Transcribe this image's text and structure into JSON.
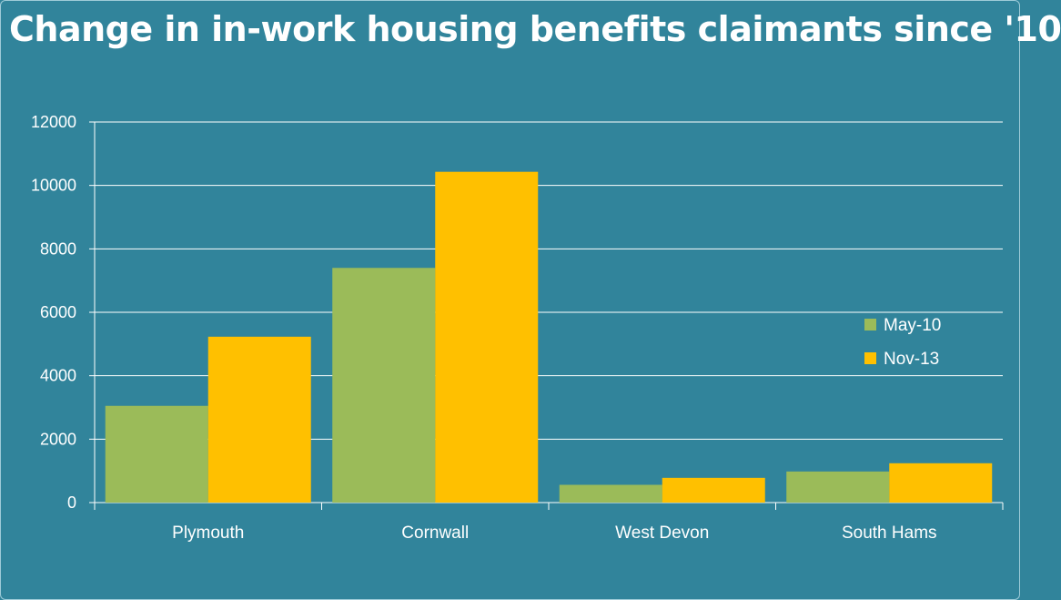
{
  "chart_data": {
    "type": "bar",
    "title": "Change in in-work housing benefits claimants since '10",
    "categories": [
      "Plymouth",
      "Cornwall",
      "West Devon",
      "South Hams"
    ],
    "series": [
      {
        "name": "May-10",
        "values": [
          3050,
          7400,
          560,
          980
        ],
        "color": "#9bbb59"
      },
      {
        "name": "Nov-13",
        "values": [
          5230,
          10430,
          780,
          1240
        ],
        "color": "#ffc000"
      }
    ],
    "yticks": [
      "0",
      "2000",
      "4000",
      "6000",
      "8000",
      "10000",
      "12000"
    ],
    "ylim": [
      0,
      12000
    ],
    "grid": true,
    "legend_position": "right",
    "colors": {
      "background": "#31849b",
      "grid": "#ffffff",
      "text": "#ffffff"
    }
  }
}
